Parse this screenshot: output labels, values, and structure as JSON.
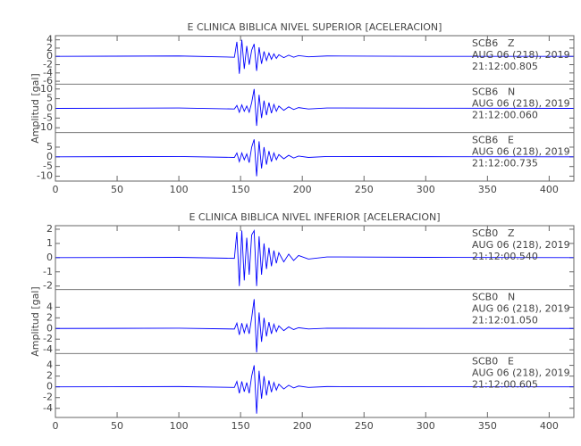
{
  "chart_data": [
    {
      "type": "line",
      "title": "E CLINICA BIBLICA NIVEL SUPERIOR [ACELERACION]",
      "y_label": "Amplitud [gal]",
      "color": "#0000ff",
      "xlim": [
        0,
        420
      ],
      "xticks": [
        0,
        50,
        100,
        150,
        200,
        250,
        300,
        350,
        400
      ],
      "x": [
        0,
        100,
        145,
        147,
        149,
        151,
        153,
        155,
        157,
        159,
        161,
        163,
        165,
        167,
        169,
        171,
        173,
        175,
        177,
        179,
        181,
        185,
        189,
        193,
        197,
        205,
        220,
        300,
        420
      ],
      "traces": [
        {
          "station": "SCB6",
          "component": "Z",
          "date": "AUG 06 (218), 2019",
          "time": "21:12:00.805",
          "ylim": [
            -6.7,
            5
          ],
          "yticks": [
            4,
            2,
            0,
            -2,
            -4,
            -6
          ],
          "values": [
            0,
            0.1,
            -0.2,
            3.5,
            -4.2,
            4,
            -3,
            2.5,
            -2,
            1.5,
            3,
            -3.5,
            2.2,
            -1.8,
            1.2,
            -1,
            0.8,
            -0.7,
            0.6,
            -0.5,
            0.4,
            -0.3,
            0.3,
            -0.2,
            0.2,
            -0.1,
            0.1,
            0,
            0
          ]
        },
        {
          "station": "SCB6",
          "component": "N",
          "date": "AUG 06 (218), 2019",
          "time": "21:12:00.060",
          "ylim": [
            -12.5,
            12.5
          ],
          "yticks": [
            10,
            5,
            0,
            -5,
            -10
          ],
          "values": [
            0,
            0.2,
            -0.3,
            1.5,
            -2,
            1.8,
            -1.5,
            1.2,
            -2,
            3,
            10,
            -9,
            7,
            -5,
            4,
            -3.5,
            3,
            -2.5,
            2,
            -1.5,
            1.2,
            -1,
            0.8,
            -0.6,
            0.4,
            -0.3,
            0.2,
            0.1,
            0
          ]
        },
        {
          "station": "SCB6",
          "component": "E",
          "date": "AUG 06 (218), 2019",
          "time": "21:12:00.735",
          "ylim": [
            -12.5,
            12.5
          ],
          "yticks": [
            5,
            0,
            -5,
            -10
          ],
          "values": [
            0,
            0.2,
            -0.3,
            2,
            -2.5,
            2,
            -1.5,
            1.5,
            -3,
            5,
            9,
            -10,
            8,
            -6,
            5,
            -4,
            3,
            -2.5,
            2,
            -1.5,
            1.2,
            -1,
            0.8,
            -0.6,
            0.4,
            -0.3,
            0.2,
            0.1,
            0
          ]
        }
      ]
    },
    {
      "type": "line",
      "title": "E CLINICA BIBLICA NIVEL INFERIOR [ACELERACION]",
      "y_label": "Amplitud [gal]",
      "color": "#0000ff",
      "xlim": [
        0,
        420
      ],
      "xticks": [
        0,
        50,
        100,
        150,
        200,
        250,
        300,
        350,
        400
      ],
      "x": [
        0,
        100,
        145,
        147,
        149,
        151,
        153,
        155,
        157,
        159,
        161,
        163,
        165,
        167,
        169,
        171,
        173,
        175,
        177,
        179,
        181,
        185,
        189,
        193,
        197,
        205,
        220,
        300,
        420
      ],
      "traces": [
        {
          "station": "SCB0",
          "component": "Z",
          "date": "AUG 06 (218), 2019",
          "time": "21:12:00.540",
          "ylim": [
            -2.25,
            2.25
          ],
          "yticks": [
            2,
            1,
            0,
            -1,
            -2
          ],
          "values": [
            0,
            0.02,
            -0.05,
            1.8,
            -2,
            1.9,
            -1.6,
            1.4,
            -1.2,
            1.6,
            1.9,
            -2,
            1.5,
            -1.2,
            1,
            -0.8,
            0.7,
            -0.6,
            0.5,
            -0.4,
            0.35,
            -0.3,
            0.25,
            -0.2,
            0.15,
            -0.1,
            0.05,
            0.02,
            0
          ]
        },
        {
          "station": "SCB0",
          "component": "N",
          "date": "AUG 06 (218), 2019",
          "time": "21:12:01.050",
          "ylim": [
            -4.7,
            7.3
          ],
          "yticks": [
            4,
            2,
            0,
            -2,
            -4
          ],
          "values": [
            0,
            0.05,
            -0.1,
            1,
            -1.2,
            1,
            -0.8,
            0.8,
            -1,
            2,
            5.5,
            -4.5,
            3,
            -2.5,
            2,
            -1.5,
            1.2,
            -1,
            0.8,
            -0.6,
            0.5,
            -0.4,
            0.3,
            -0.2,
            0.15,
            -0.1,
            0.05,
            0.02,
            0
          ]
        },
        {
          "station": "SCB0",
          "component": "E",
          "date": "AUG 06 (218), 2019",
          "time": "21:12:00.605",
          "ylim": [
            -5.7,
            6.2
          ],
          "yticks": [
            4,
            2,
            0,
            -2,
            -4
          ],
          "values": [
            0,
            0.05,
            -0.1,
            1,
            -1.2,
            1,
            -0.9,
            0.8,
            -1.2,
            2,
            4,
            -5,
            3,
            -2.2,
            2,
            -1.6,
            1.2,
            -1,
            0.8,
            -0.6,
            0.5,
            -0.4,
            0.3,
            -0.2,
            0.15,
            -0.1,
            0.05,
            0.02,
            0
          ]
        }
      ]
    }
  ]
}
